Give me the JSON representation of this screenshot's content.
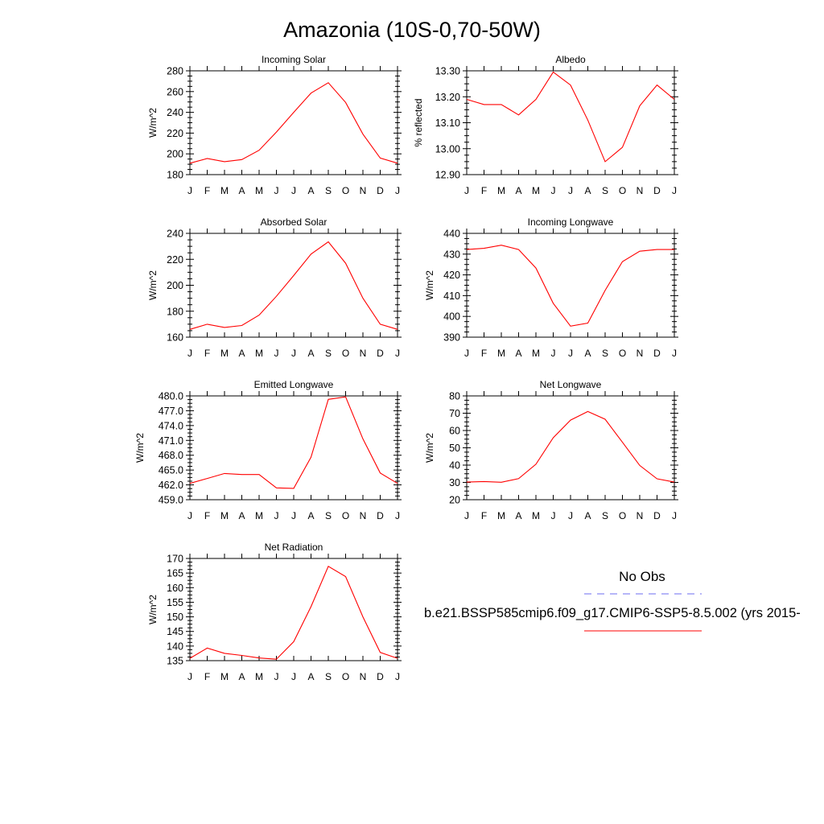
{
  "title": "Amazonia (10S-0,70-50W)",
  "months": [
    "J",
    "F",
    "M",
    "A",
    "M",
    "J",
    "J",
    "A",
    "S",
    "O",
    "N",
    "D",
    "J"
  ],
  "colors": {
    "model": "#ff0000",
    "obs": "#6e6ef0",
    "axis": "#000000"
  },
  "legend": {
    "obs_label": "No Obs",
    "model_label": "b.e21.BSSP585cmip6.f09_g17.CMIP6-SSP5-8.5.002 (yrs 2015-"
  },
  "chart_data": [
    {
      "type": "line",
      "title": "Incoming Solar",
      "ylabel": "W/m^2",
      "xlabel": "",
      "categories": [
        "J",
        "F",
        "M",
        "A",
        "M",
        "J",
        "J",
        "A",
        "S",
        "O",
        "N",
        "D",
        "J"
      ],
      "ylim": [
        180,
        280
      ],
      "yticks": [
        "180",
        "200",
        "220",
        "240",
        "260",
        "280"
      ],
      "series": [
        {
          "values": [
            191,
            195.5,
            192.5,
            194.5,
            203.5,
            221,
            240,
            258.5,
            268.5,
            249.5,
            219,
            196,
            191
          ]
        }
      ]
    },
    {
      "type": "line",
      "title": "Albedo",
      "ylabel": "% reflected",
      "xlabel": "",
      "categories": [
        "J",
        "F",
        "M",
        "A",
        "M",
        "J",
        "J",
        "A",
        "S",
        "O",
        "N",
        "D",
        "J"
      ],
      "ylim": [
        12.9,
        13.3
      ],
      "yticks": [
        "12.90",
        "13.00",
        "13.10",
        "13.20",
        "13.30"
      ],
      "series": [
        {
          "values": [
            13.19,
            13.17,
            13.17,
            13.13,
            13.19,
            13.295,
            13.245,
            13.11,
            12.95,
            13.005,
            13.165,
            13.245,
            13.19
          ]
        }
      ]
    },
    {
      "type": "line",
      "title": "Absorbed Solar",
      "ylabel": "W/m^2",
      "xlabel": "",
      "categories": [
        "J",
        "F",
        "M",
        "A",
        "M",
        "J",
        "J",
        "A",
        "S",
        "O",
        "N",
        "D",
        "J"
      ],
      "ylim": [
        160,
        240
      ],
      "yticks": [
        "160",
        "180",
        "200",
        "220",
        "240"
      ],
      "series": [
        {
          "values": [
            166,
            170,
            167.5,
            169,
            177,
            191.5,
            207.5,
            224,
            233.5,
            217,
            190,
            170,
            166
          ]
        }
      ]
    },
    {
      "type": "line",
      "title": "Incoming Longwave",
      "ylabel": "W/m^2",
      "xlabel": "",
      "categories": [
        "J",
        "F",
        "M",
        "A",
        "M",
        "J",
        "J",
        "A",
        "S",
        "O",
        "N",
        "D",
        "J"
      ],
      "ylim": [
        390,
        440
      ],
      "yticks": [
        "390",
        "400",
        "410",
        "420",
        "430",
        "440"
      ],
      "series": [
        {
          "values": [
            432.2,
            432.8,
            434.3,
            432.2,
            423.3,
            406.3,
            395.3,
            396.8,
            412.5,
            426.4,
            431.4,
            432.2,
            432.2
          ]
        }
      ]
    },
    {
      "type": "line",
      "title": "Emitted Longwave",
      "ylabel": "W/m^2",
      "xlabel": "",
      "categories": [
        "J",
        "F",
        "M",
        "A",
        "M",
        "J",
        "J",
        "A",
        "S",
        "O",
        "N",
        "D",
        "J"
      ],
      "ylim": [
        459,
        480
      ],
      "yticks": [
        "459.0",
        "462.0",
        "465.0",
        "468.0",
        "471.0",
        "474.0",
        "477.0",
        "480.0"
      ],
      "series": [
        {
          "values": [
            462.3,
            463.3,
            464.3,
            464.1,
            464.1,
            461.4,
            461.3,
            467.6,
            479.3,
            479.8,
            471.3,
            464.4,
            462.3
          ]
        }
      ]
    },
    {
      "type": "line",
      "title": "Net Longwave",
      "ylabel": "W/m^2",
      "xlabel": "",
      "categories": [
        "J",
        "F",
        "M",
        "A",
        "M",
        "J",
        "J",
        "A",
        "S",
        "O",
        "N",
        "D",
        "J"
      ],
      "ylim": [
        20,
        80
      ],
      "yticks": [
        "20",
        "30",
        "40",
        "50",
        "60",
        "70",
        "80"
      ],
      "series": [
        {
          "values": [
            30.2,
            30.5,
            30.1,
            32.2,
            40.5,
            55.8,
            66,
            71,
            66.5,
            53.2,
            39.8,
            32.1,
            30.2
          ]
        }
      ]
    },
    {
      "type": "line",
      "title": "Net Radiation",
      "ylabel": "W/m^2",
      "xlabel": "",
      "categories": [
        "J",
        "F",
        "M",
        "A",
        "M",
        "J",
        "J",
        "A",
        "S",
        "O",
        "N",
        "D",
        "J"
      ],
      "ylim": [
        135,
        170
      ],
      "yticks": [
        "135",
        "140",
        "145",
        "150",
        "155",
        "160",
        "165",
        "170"
      ],
      "series": [
        {
          "values": [
            135.8,
            139.3,
            137.5,
            136.8,
            135.9,
            135.5,
            141.5,
            153.5,
            167.3,
            163.8,
            150,
            137.8,
            135.8
          ]
        }
      ]
    }
  ]
}
